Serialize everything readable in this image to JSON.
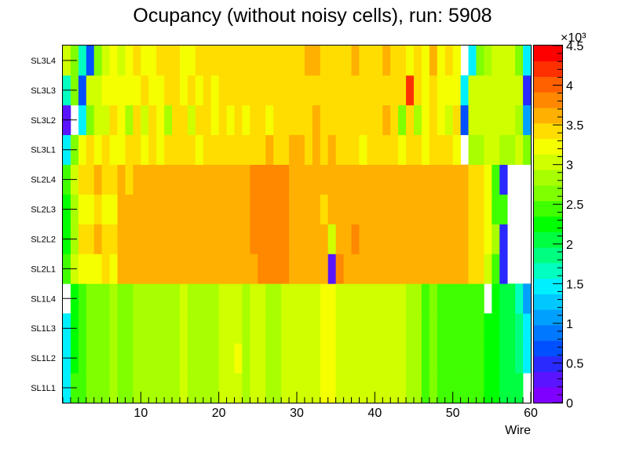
{
  "chart_data": {
    "type": "heatmap",
    "title": "Ocupancy (without noisy cells), run: 5908",
    "xlabel": "Wire",
    "ylabel": "",
    "xlim": [
      0,
      60
    ],
    "x_ticks": [
      10,
      20,
      30,
      40,
      50,
      60
    ],
    "row_labels": [
      "SL1L1",
      "SL1L2",
      "SL1L3",
      "SL1L4",
      "SL2L1",
      "SL2L2",
      "SL2L3",
      "SL2L4",
      "SL3L1",
      "SL3L2",
      "SL3L3",
      "SL3L4"
    ],
    "colorbar": {
      "min": 0,
      "max": 4500,
      "exponent_label": "×10³",
      "ticks": [
        0,
        0.5,
        1,
        1.5,
        2,
        2.5,
        3,
        3.5,
        4,
        4.5
      ],
      "tick_labels": [
        "0",
        "0.5",
        "1",
        "1.5",
        "2",
        "2.5",
        "3",
        "3.5",
        "4",
        "4.5"
      ],
      "palette": [
        "#7f00ff",
        "#5a14ff",
        "#2a2aff",
        "#0050ff",
        "#0078ff",
        "#00a0ff",
        "#00c8ff",
        "#00f0ff",
        "#00ffc0",
        "#00ff80",
        "#00ff40",
        "#00ff00",
        "#40ff00",
        "#80ff00",
        "#a8ff00",
        "#d0ff00",
        "#f5ff00",
        "#ffdd00",
        "#ffb000",
        "#ff8800",
        "#ff6000",
        "#ff3000",
        "#ff0000"
      ]
    },
    "z_values": [
      [
        1500,
        2400,
        2500,
        2600,
        2600,
        2700,
        2800,
        2700,
        2700,
        2800,
        2900,
        2900,
        2800,
        2800,
        2900,
        3000,
        2800,
        2900,
        2900,
        2900,
        3000,
        3100,
        3000,
        2900,
        3000,
        3000,
        2900,
        2900,
        3000,
        3000,
        3000,
        3000,
        3000,
        3200,
        3200,
        3000,
        3000,
        3100,
        3100,
        3100,
        3100,
        3000,
        3000,
        3000,
        2900,
        2900,
        2500,
        2700,
        2500,
        2500,
        2400,
        2500,
        2400,
        2400,
        2300,
        2200,
        2100,
        2100,
        2000,
        0
      ],
      [
        1500,
        2300,
        2500,
        2600,
        2600,
        2700,
        2800,
        2700,
        2700,
        2800,
        2900,
        2900,
        2800,
        2800,
        2900,
        3000,
        2800,
        2900,
        2900,
        2900,
        3000,
        3100,
        3200,
        2900,
        3000,
        3000,
        2900,
        2900,
        3000,
        3000,
        3000,
        3000,
        3000,
        3200,
        3200,
        3000,
        3000,
        3100,
        3100,
        3100,
        3100,
        3000,
        3000,
        3000,
        2900,
        2900,
        2500,
        2600,
        2500,
        2500,
        2400,
        2500,
        2400,
        2400,
        2300,
        2200,
        2100,
        2100,
        1900,
        1400
      ],
      [
        1500,
        2300,
        2500,
        2600,
        2600,
        2700,
        2800,
        2700,
        2700,
        2800,
        2900,
        2900,
        2800,
        2800,
        2900,
        3000,
        2800,
        2900,
        2900,
        2900,
        3000,
        3100,
        3000,
        2900,
        3000,
        3000,
        2900,
        2900,
        3000,
        3000,
        3000,
        3000,
        3000,
        3200,
        3200,
        3000,
        3000,
        3100,
        3100,
        3100,
        3100,
        3000,
        3000,
        3000,
        2900,
        2900,
        2500,
        2600,
        2500,
        2500,
        2400,
        2500,
        2400,
        2400,
        2300,
        2200,
        2100,
        2100,
        1900,
        1400
      ],
      [
        0,
        2300,
        2500,
        2600,
        2600,
        2700,
        2800,
        2700,
        2700,
        2800,
        2900,
        2900,
        2800,
        2800,
        2900,
        3000,
        2800,
        2900,
        2900,
        2900,
        3000,
        3100,
        3000,
        2900,
        3000,
        3000,
        2900,
        2900,
        3000,
        3000,
        3000,
        3000,
        3000,
        3200,
        3200,
        3000,
        3000,
        3100,
        3100,
        3100,
        3100,
        3000,
        3000,
        3000,
        2900,
        2900,
        2500,
        2600,
        2500,
        2500,
        2400,
        2500,
        2400,
        2400,
        0,
        2200,
        2100,
        2000,
        1700,
        1000
      ],
      [
        2500,
        3000,
        3300,
        3300,
        3200,
        3500,
        3300,
        3700,
        3700,
        3700,
        3700,
        3700,
        3700,
        3700,
        3700,
        3700,
        3700,
        3700,
        3700,
        3700,
        3700,
        3700,
        3700,
        3700,
        3700,
        3900,
        3900,
        3900,
        3900,
        3700,
        3700,
        3700,
        3700,
        3700,
        200,
        3900,
        3700,
        3700,
        3700,
        3700,
        3700,
        3700,
        3700,
        3700,
        3700,
        3700,
        3700,
        3700,
        3700,
        3700,
        3700,
        3600,
        3400,
        3400,
        3100,
        2400,
        500,
        0,
        0,
        0
      ],
      [
        2200,
        2800,
        3400,
        3400,
        3600,
        3400,
        3400,
        3700,
        3700,
        3700,
        3700,
        3700,
        3700,
        3700,
        3700,
        3700,
        3700,
        3700,
        3700,
        3700,
        3700,
        3700,
        3700,
        3700,
        3900,
        3900,
        3900,
        3900,
        3900,
        3700,
        3700,
        3700,
        3700,
        3700,
        3000,
        3700,
        3700,
        3900,
        3700,
        3700,
        3700,
        3700,
        3700,
        3700,
        3700,
        3700,
        3700,
        3700,
        3700,
        3700,
        3700,
        3600,
        3400,
        3400,
        3200,
        2800,
        500,
        0,
        0,
        0
      ],
      [
        2300,
        2900,
        3300,
        3300,
        3500,
        3300,
        3300,
        3700,
        3700,
        3700,
        3700,
        3700,
        3700,
        3700,
        3700,
        3700,
        3700,
        3700,
        3700,
        3700,
        3700,
        3700,
        3700,
        3700,
        3900,
        3900,
        3900,
        3900,
        3900,
        3700,
        3700,
        3700,
        3700,
        3400,
        3700,
        3700,
        3700,
        3700,
        3700,
        3700,
        3700,
        3700,
        3700,
        3700,
        3700,
        3700,
        3700,
        3700,
        3700,
        3700,
        3700,
        3600,
        3400,
        3400,
        3200,
        2400,
        2500,
        0,
        0,
        0
      ],
      [
        2500,
        3100,
        3500,
        3500,
        3700,
        3500,
        3500,
        3700,
        3500,
        3700,
        3700,
        3700,
        3700,
        3700,
        3700,
        3700,
        3700,
        3700,
        3700,
        3700,
        3700,
        3700,
        3700,
        3700,
        3900,
        3900,
        3900,
        3900,
        3900,
        3700,
        3700,
        3700,
        3700,
        3700,
        3700,
        3700,
        3700,
        3700,
        3700,
        3700,
        3700,
        3700,
        3700,
        3700,
        3700,
        3700,
        3700,
        3700,
        3700,
        3700,
        3700,
        3600,
        3400,
        3400,
        3200,
        2400,
        500,
        0,
        0,
        0
      ],
      [
        1500,
        2700,
        3300,
        3400,
        3200,
        3400,
        3300,
        3300,
        3400,
        3500,
        3300,
        3500,
        3300,
        3400,
        3500,
        3400,
        3500,
        3300,
        3500,
        3400,
        3500,
        3500,
        3400,
        3500,
        3500,
        3400,
        3700,
        3400,
        3500,
        3700,
        3700,
        3400,
        3700,
        3500,
        3700,
        3400,
        3500,
        3500,
        3300,
        3400,
        3400,
        3500,
        3500,
        3300,
        3500,
        3500,
        3300,
        3500,
        3400,
        3500,
        3300,
        0,
        2900,
        2900,
        3000,
        3100,
        2900,
        2900,
        3000,
        2700
      ],
      [
        300,
        0,
        1500,
        2600,
        3100,
        3100,
        3400,
        3300,
        2800,
        3400,
        3100,
        3400,
        3300,
        2900,
        3400,
        3400,
        3100,
        3400,
        3400,
        3300,
        3400,
        3300,
        3400,
        3300,
        3500,
        3400,
        3300,
        3400,
        3500,
        3400,
        3500,
        3400,
        3700,
        3500,
        3400,
        3500,
        3500,
        3400,
        3500,
        3400,
        3400,
        3700,
        3400,
        2700,
        3400,
        2900,
        3300,
        3400,
        3300,
        3100,
        3400,
        700,
        3000,
        3000,
        3000,
        3100,
        3000,
        3000,
        2900,
        1100
      ],
      [
        1600,
        2600,
        700,
        3000,
        3000,
        3200,
        3200,
        3300,
        3200,
        3300,
        3400,
        3300,
        3300,
        3400,
        3400,
        3300,
        3400,
        3300,
        3400,
        3300,
        3500,
        3400,
        3500,
        3400,
        3500,
        3500,
        3400,
        3500,
        3500,
        3500,
        3500,
        3500,
        3500,
        3400,
        3500,
        3400,
        3500,
        3500,
        3400,
        3400,
        3500,
        3500,
        3500,
        3400,
        4200,
        3400,
        3300,
        3400,
        3300,
        3300,
        3200,
        1500,
        3000,
        3000,
        3000,
        3000,
        3100,
        3100,
        3100,
        500
      ],
      [
        3000,
        2700,
        1600,
        700,
        2700,
        3000,
        3300,
        3000,
        3300,
        3400,
        3300,
        3300,
        3400,
        3400,
        3400,
        3300,
        3300,
        3400,
        3400,
        3400,
        3400,
        3400,
        3400,
        3400,
        3400,
        3500,
        3400,
        3400,
        3500,
        3400,
        3400,
        3600,
        3700,
        3400,
        3400,
        3400,
        3400,
        3700,
        3400,
        3400,
        3400,
        3700,
        3400,
        3400,
        3300,
        3400,
        3300,
        3700,
        3300,
        3400,
        3300,
        0,
        1500,
        2700,
        2800,
        3000,
        3000,
        3000,
        2700,
        1500
      ]
    ]
  }
}
